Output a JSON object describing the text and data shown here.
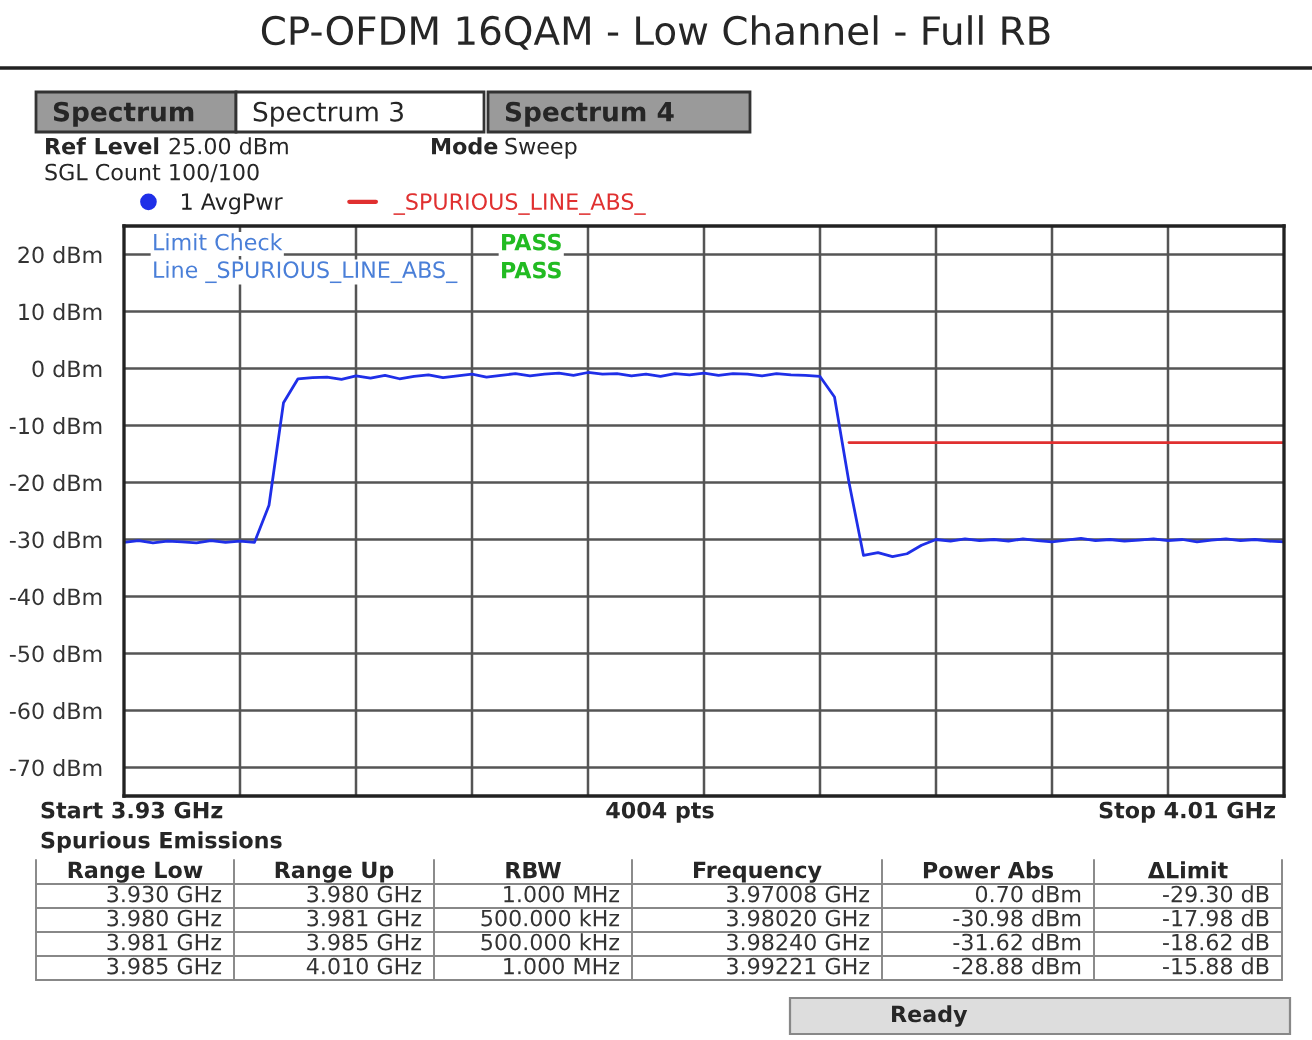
{
  "chart_data": {
    "type": "line",
    "title": "CP-OFDM 16QAM - Low Channel - Full RB",
    "categories": [
      null,
      null,
      null,
      null,
      null,
      null,
      null,
      null,
      null,
      null,
      null,
      null,
      null,
      null,
      null,
      null,
      null,
      null,
      null,
      null,
      null,
      null,
      null,
      null,
      null,
      null,
      null,
      null,
      null,
      null,
      null,
      null,
      null,
      null,
      null,
      null,
      null,
      null,
      null,
      null,
      null,
      null,
      null,
      null,
      null,
      null,
      null,
      null,
      null,
      null,
      null,
      null,
      null,
      null,
      null,
      null,
      null,
      null,
      null,
      null,
      null,
      null,
      null,
      null,
      null,
      null,
      null,
      null,
      null,
      null,
      null,
      null,
      null,
      null,
      null,
      null,
      null,
      null,
      null,
      null,
      null
    ],
    "series": [
      {
        "name": "1 AvgPwr",
        "color": "#1f2fe8",
        "values": [
          -30.5,
          -30.2,
          -30.6,
          -30.3,
          -30.4,
          -30.6,
          -30.2,
          -30.5,
          -30.3,
          -30.5,
          -24,
          -6,
          -1.8,
          -1.6,
          -1.5,
          -1.9,
          -1.3,
          -1.7,
          -1.2,
          -1.8,
          -1.4,
          -1.1,
          -1.6,
          -1.3,
          -1.0,
          -1.5,
          -1.2,
          -0.9,
          -1.3,
          -1.0,
          -0.8,
          -1.2,
          -0.7,
          -1.0,
          -0.9,
          -1.3,
          -1.0,
          -1.4,
          -0.9,
          -1.1,
          -0.8,
          -1.2,
          -0.9,
          -1.0,
          -1.3,
          -0.9,
          -1.1,
          -1.2,
          -1.4,
          -5,
          -20,
          -32.8,
          -32.3,
          -33,
          -32.5,
          -31,
          -30.0,
          -30.3,
          -29.9,
          -30.2,
          -30.0,
          -30.3,
          -29.9,
          -30.2,
          -30.4,
          -30.1,
          -29.8,
          -30.2,
          -30.0,
          -30.3,
          -30.1,
          -29.9,
          -30.2,
          -30.0,
          -30.4,
          -30.1,
          -29.9,
          -30.2,
          -30.0,
          -30.3,
          -30.4
        ]
      },
      {
        "name": "_SPURIOUS_LINE_ABS_",
        "color": "#e03030",
        "values": [
          null,
          null,
          null,
          null,
          null,
          null,
          null,
          null,
          null,
          null,
          null,
          null,
          null,
          null,
          null,
          null,
          null,
          null,
          null,
          null,
          null,
          null,
          null,
          null,
          null,
          null,
          null,
          null,
          null,
          null,
          null,
          null,
          null,
          null,
          null,
          null,
          null,
          null,
          null,
          null,
          null,
          null,
          null,
          null,
          null,
          null,
          null,
          null,
          null,
          null,
          -13,
          -13,
          -13,
          -13,
          -13,
          -13,
          -13,
          -13,
          -13,
          -13,
          -13,
          -13,
          -13,
          -13,
          -13,
          -13,
          -13,
          -13,
          -13,
          -13,
          -13,
          -13,
          -13,
          -13,
          -13,
          -13,
          -13,
          -13,
          -13,
          -13,
          -13
        ]
      }
    ],
    "ylim": [
      -75,
      25
    ],
    "yticks": [
      {
        "value": 20,
        "label": "20 dBm"
      },
      {
        "value": 10,
        "label": "10 dBm"
      },
      {
        "value": 0,
        "label": "0 dBm"
      },
      {
        "value": -10,
        "label": "-10 dBm"
      },
      {
        "value": -20,
        "label": "-20 dBm"
      },
      {
        "value": -30,
        "label": "-30 dBm"
      },
      {
        "value": -40,
        "label": "-40 dBm"
      },
      {
        "value": -50,
        "label": "-50 dBm"
      },
      {
        "value": -60,
        "label": "-60 dBm"
      },
      {
        "value": -70,
        "label": "-70 dBm"
      }
    ],
    "tick_labels": "y",
    "grid": true,
    "legend": "top left",
    "marker": "none",
    "line_style": "solid",
    "annotations": [
      "Spectrum",
      "Spectrum 3",
      "Spectrum 4",
      "Ref Level",
      "25.00 dBm",
      "Mode",
      "Sweep",
      "SGL Count 100/100",
      "Limit Check",
      "PASS",
      "Line _SPURIOUS_LINE_ABS_",
      "PASS",
      "Start 3.93 GHz",
      "4004 pts",
      "Stop 4.01 GHz",
      "Spurious Emissions",
      "Range Low",
      "Range Up",
      "RBW",
      "Frequency",
      "Power Abs",
      "ΔLimit",
      "3.930 GHz",
      "3.980 GHz",
      "1.000 MHz",
      "3.97008 GHz",
      "0.70 dBm",
      "-29.30 dB",
      "3.980 GHz",
      "3.981 GHz",
      "500.000 kHz",
      "3.98020 GHz",
      "-30.98 dBm",
      "-17.98 dB",
      "3.981 GHz",
      "3.985 GHz",
      "500.000 kHz",
      "3.98240 GHz",
      "-31.62 dBm",
      "-18.62 dB",
      "3.985 GHz",
      "4.010 GHz",
      "1.000 MHz",
      "3.99221 GHz",
      "-28.88 dBm",
      "-15.88 dB",
      "Ready"
    ]
  }
}
